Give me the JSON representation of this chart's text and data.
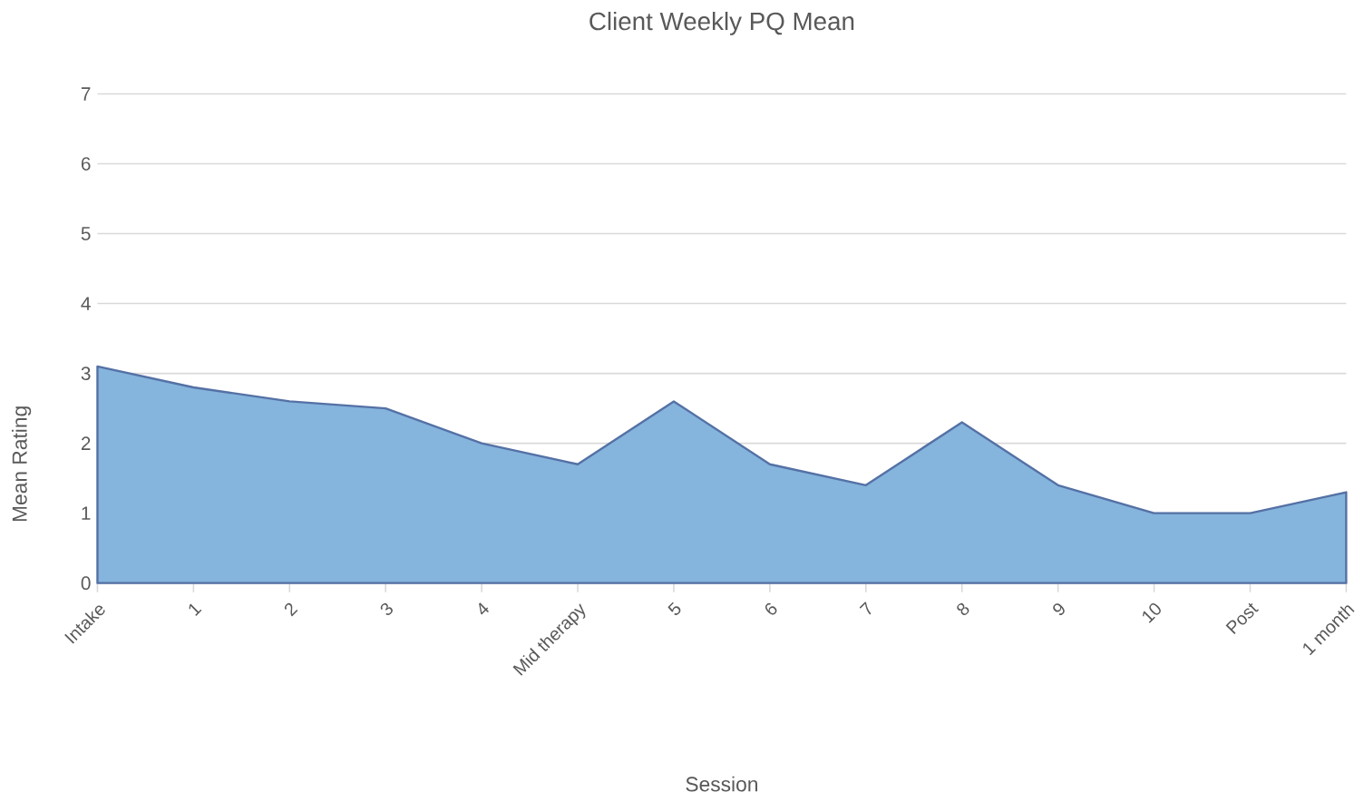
{
  "chart_data": {
    "type": "area",
    "title": "Client Weekly PQ Mean",
    "xlabel": "Session",
    "ylabel": "Mean Rating",
    "categories": [
      "Intake",
      "1",
      "2",
      "3",
      "4",
      "Mid therapy",
      "5",
      "6",
      "7",
      "8",
      "9",
      "10",
      "Post",
      "1 month"
    ],
    "values": [
      3.1,
      2.8,
      2.6,
      2.5,
      2.0,
      1.7,
      2.6,
      1.7,
      1.4,
      2.3,
      1.4,
      1.0,
      1.0,
      1.3
    ],
    "color": "#85b4dd",
    "ylim": [
      0,
      7
    ],
    "yticks": [
      0,
      1,
      2,
      3,
      4,
      5,
      6,
      7
    ],
    "grid": "y"
  }
}
